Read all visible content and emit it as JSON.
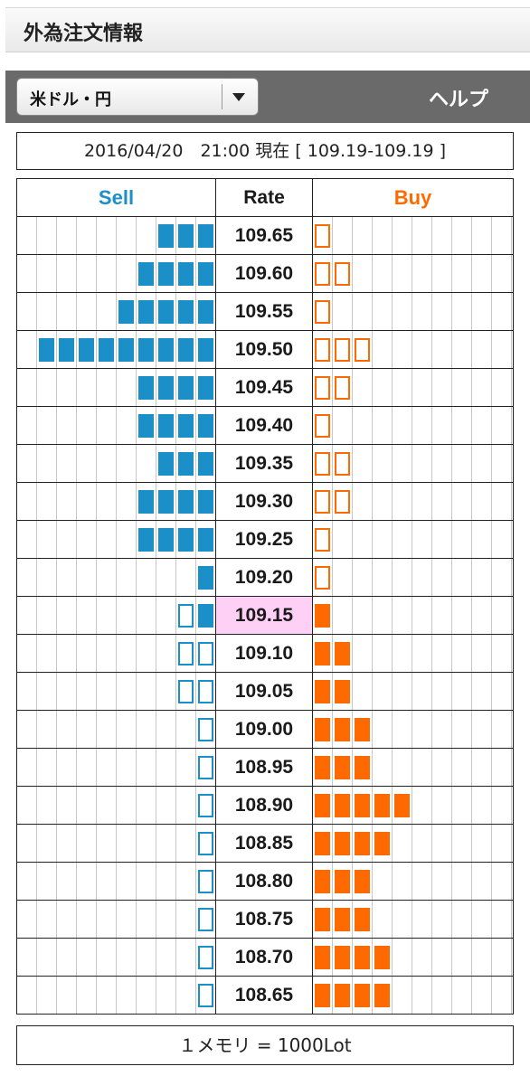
{
  "header": {
    "title": "外為注文情報"
  },
  "toolbar": {
    "currency_pair": "米ドル・円",
    "help_label": "ヘルプ"
  },
  "status": {
    "datetime_text": "2016/04/20　21:00 現在 [ 109.19-109.19 ]"
  },
  "table": {
    "headers": {
      "sell": "Sell",
      "rate": "Rate",
      "buy": "Buy"
    },
    "colors": {
      "sell": "#1b8fc8",
      "buy": "#ff6a00",
      "current_rate_bg": "#ffd0f5"
    },
    "current_rate": "109.15",
    "rows": [
      {
        "rate": "109.65",
        "sell_filled": 3,
        "sell_outline": 0,
        "buy_filled": 0,
        "buy_outline": 1
      },
      {
        "rate": "109.60",
        "sell_filled": 4,
        "sell_outline": 0,
        "buy_filled": 0,
        "buy_outline": 2
      },
      {
        "rate": "109.55",
        "sell_filled": 5,
        "sell_outline": 0,
        "buy_filled": 0,
        "buy_outline": 1
      },
      {
        "rate": "109.50",
        "sell_filled": 9,
        "sell_outline": 0,
        "buy_filled": 0,
        "buy_outline": 3
      },
      {
        "rate": "109.45",
        "sell_filled": 4,
        "sell_outline": 0,
        "buy_filled": 0,
        "buy_outline": 2
      },
      {
        "rate": "109.40",
        "sell_filled": 4,
        "sell_outline": 0,
        "buy_filled": 0,
        "buy_outline": 1
      },
      {
        "rate": "109.35",
        "sell_filled": 3,
        "sell_outline": 0,
        "buy_filled": 0,
        "buy_outline": 2
      },
      {
        "rate": "109.30",
        "sell_filled": 4,
        "sell_outline": 0,
        "buy_filled": 0,
        "buy_outline": 2
      },
      {
        "rate": "109.25",
        "sell_filled": 4,
        "sell_outline": 0,
        "buy_filled": 0,
        "buy_outline": 1
      },
      {
        "rate": "109.20",
        "sell_filled": 1,
        "sell_outline": 0,
        "buy_filled": 0,
        "buy_outline": 1
      },
      {
        "rate": "109.15",
        "sell_filled": 1,
        "sell_outline": 1,
        "buy_filled": 1,
        "buy_outline": 0,
        "current": true
      },
      {
        "rate": "109.10",
        "sell_filled": 0,
        "sell_outline": 2,
        "buy_filled": 2,
        "buy_outline": 0
      },
      {
        "rate": "109.05",
        "sell_filled": 0,
        "sell_outline": 2,
        "buy_filled": 2,
        "buy_outline": 0
      },
      {
        "rate": "109.00",
        "sell_filled": 0,
        "sell_outline": 1,
        "buy_filled": 3,
        "buy_outline": 0
      },
      {
        "rate": "108.95",
        "sell_filled": 0,
        "sell_outline": 1,
        "buy_filled": 3,
        "buy_outline": 0
      },
      {
        "rate": "108.90",
        "sell_filled": 0,
        "sell_outline": 1,
        "buy_filled": 5,
        "buy_outline": 0
      },
      {
        "rate": "108.85",
        "sell_filled": 0,
        "sell_outline": 1,
        "buy_filled": 4,
        "buy_outline": 0
      },
      {
        "rate": "108.80",
        "sell_filled": 0,
        "sell_outline": 1,
        "buy_filled": 3,
        "buy_outline": 0
      },
      {
        "rate": "108.75",
        "sell_filled": 0,
        "sell_outline": 1,
        "buy_filled": 3,
        "buy_outline": 0
      },
      {
        "rate": "108.70",
        "sell_filled": 0,
        "sell_outline": 1,
        "buy_filled": 4,
        "buy_outline": 0
      },
      {
        "rate": "108.65",
        "sell_filled": 0,
        "sell_outline": 1,
        "buy_filled": 4,
        "buy_outline": 0
      }
    ]
  },
  "footer": {
    "legend": "１メモリ = 1000Lot"
  }
}
